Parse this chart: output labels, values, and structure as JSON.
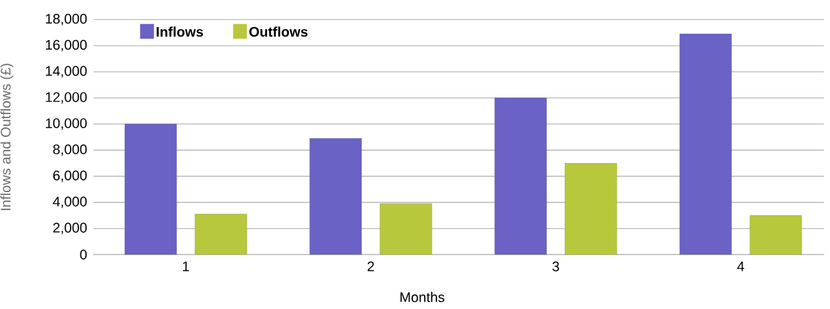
{
  "chart_data": {
    "type": "bar",
    "xlabel": "Months",
    "ylabel": "Inflows and Outflows (£)",
    "categories": [
      "1",
      "2",
      "3",
      "4"
    ],
    "series": [
      {
        "name": "Inflows",
        "color": "#6a62c4",
        "values": [
          10000,
          8900,
          12000,
          16900
        ]
      },
      {
        "name": "Outflows",
        "color": "#b8c83c",
        "values": [
          3100,
          3900,
          7000,
          3000
        ]
      }
    ],
    "ylim": [
      0,
      18000
    ],
    "yticks": [
      0,
      {
        "value": 2000,
        "label": "2,000"
      },
      {
        "value": 4000,
        "label": "4,000"
      },
      {
        "value": 6000,
        "label": "6,000"
      },
      {
        "value": 8000,
        "label": "8,000"
      },
      {
        "value": 10000,
        "label": "10,000"
      },
      {
        "value": 12000,
        "label": "12,000"
      },
      {
        "value": 14000,
        "label": "14,000"
      },
      {
        "value": 16000,
        "label": "16,000"
      },
      {
        "value": 18000,
        "label": "18,000"
      }
    ],
    "grid": "y",
    "legend": "top left"
  }
}
